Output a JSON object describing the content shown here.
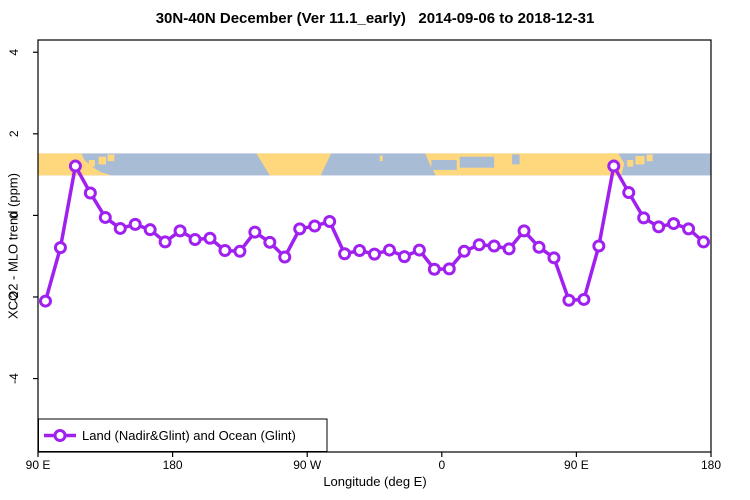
{
  "chart_data": {
    "type": "line",
    "title": "30N-40N December (Ver 11.1_early)   2014-09-06 to 2018-12-31",
    "xlabel": "Longitude (deg E)",
    "ylabel": "XCO2 - MLO trend (ppm)",
    "xlim": [
      90,
      540
    ],
    "ylim": [
      -5.8,
      4.3
    ],
    "grid": false,
    "x_ticks": [
      {
        "value": 90,
        "label": "90 E"
      },
      {
        "value": 180,
        "label": "180"
      },
      {
        "value": 270,
        "label": "90 W"
      },
      {
        "value": 360,
        "label": "0"
      },
      {
        "value": 450,
        "label": "90 E"
      },
      {
        "value": 540,
        "label": "180"
      }
    ],
    "y_ticks": [
      {
        "value": -4,
        "label": "-4"
      },
      {
        "value": -2,
        "label": "-2"
      },
      {
        "value": 0,
        "label": "0"
      },
      {
        "value": 2,
        "label": "2"
      },
      {
        "value": 4,
        "label": "4"
      }
    ],
    "legend": {
      "position": "bottom-left",
      "entries": [
        {
          "label": "Land (Nadir&Glint) and Ocean (Glint)",
          "color": "#A020F0",
          "marker": "open-circle"
        }
      ]
    },
    "series": [
      {
        "name": "Land (Nadir&Glint) and Ocean (Glint)",
        "color": "#A020F0",
        "marker": "open-circle",
        "x": [
          95,
          105,
          115,
          125,
          135,
          145,
          155,
          165,
          175,
          185,
          195,
          205,
          215,
          225,
          235,
          245,
          255,
          265,
          275,
          285,
          295,
          305,
          315,
          325,
          335,
          345,
          355,
          365,
          375,
          385,
          395,
          405,
          415,
          425,
          435,
          445,
          455,
          465,
          475,
          485,
          495,
          505,
          515,
          525,
          535
        ],
        "y": [
          -2.1,
          -0.79,
          1.21,
          0.55,
          -0.05,
          -0.32,
          -0.22,
          -0.35,
          -0.65,
          -0.38,
          -0.59,
          -0.56,
          -0.86,
          -0.88,
          -0.41,
          -0.66,
          -1.02,
          -0.33,
          -0.26,
          -0.15,
          -0.94,
          -0.86,
          -0.95,
          -0.85,
          -1.01,
          -0.85,
          -1.32,
          -1.31,
          -0.88,
          -0.72,
          -0.75,
          -0.82,
          -0.38,
          -0.78,
          -1.04,
          -2.08,
          -2.06,
          -0.75,
          1.21,
          0.56,
          -0.06,
          -0.28,
          -0.2,
          -0.33,
          -0.65
        ]
      }
    ],
    "map_band": {
      "description": "30N-40N world map strip",
      "y_range": [
        0.98,
        1.52
      ],
      "ocean_color": "#A9BCD6",
      "land_color": "#FFD87E",
      "land_polygons": [
        {
          "name": "east-asia",
          "points": [
            [
              90,
              0
            ],
            [
              119,
              0
            ],
            [
              121,
              0.3
            ],
            [
              126,
              0.6
            ],
            [
              132,
              0.85
            ],
            [
              139,
              1
            ],
            [
              90,
              1
            ]
          ]
        },
        {
          "name": "north-america",
          "points": [
            [
              236,
              0
            ],
            [
              286,
              0
            ],
            [
              279,
              1
            ],
            [
              245,
              1
            ]
          ]
        },
        {
          "name": "eurasia-africa",
          "points": [
            [
              349,
              0
            ],
            [
              478,
              0
            ],
            [
              482,
              0.45
            ],
            [
              480,
              1
            ],
            [
              356,
              1
            ],
            [
              352,
              0.5
            ]
          ]
        }
      ],
      "islands": [
        {
          "x": 124,
          "w": 4,
          "y": 0.3,
          "h": 0.3
        },
        {
          "x": 130.5,
          "w": 5,
          "y": 0.15,
          "h": 0.35
        },
        {
          "x": 136.5,
          "w": 4.5,
          "y": 0.05,
          "h": 0.3
        },
        {
          "x": 318.5,
          "w": 2,
          "y": 0.1,
          "h": 0.25
        },
        {
          "x": 484,
          "w": 4,
          "y": 0.3,
          "h": 0.3
        },
        {
          "x": 489.5,
          "w": 6,
          "y": 0.12,
          "h": 0.38
        },
        {
          "x": 497,
          "w": 4,
          "y": 0.05,
          "h": 0.3
        }
      ],
      "lakes": [
        {
          "x": 353,
          "w": 17,
          "y": 0.3,
          "h": 0.45
        },
        {
          "x": 372,
          "w": 23,
          "y": 0.15,
          "h": 0.5
        },
        {
          "x": 407,
          "w": 5,
          "y": 0.05,
          "h": 0.45
        }
      ]
    }
  }
}
